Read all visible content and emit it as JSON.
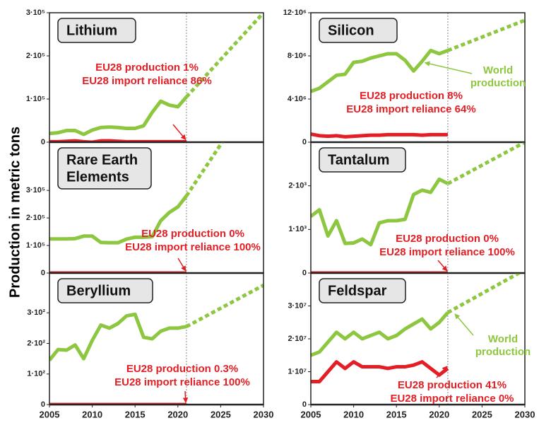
{
  "ylabel": "Production in metric tons",
  "chart_data": [
    {
      "type": "line",
      "title_lines": [
        "Lithium"
      ],
      "annotation": [
        "EU28 production 1%",
        "EU28 import reliance 86%"
      ],
      "x": [
        2005,
        2006,
        2007,
        2008,
        2009,
        2010,
        2011,
        2012,
        2013,
        2014,
        2015,
        2016,
        2017,
        2018,
        2019,
        2020,
        2021
      ],
      "series": [
        {
          "color": "#8dc63f",
          "values": [
            20000,
            22000,
            27000,
            27000,
            18000,
            28000,
            34000,
            35000,
            34000,
            32000,
            32000,
            38000,
            69000,
            95000,
            86000,
            82000,
            105000
          ]
        },
        {
          "color": "#8dc63f",
          "dashed": true,
          "x": [
            2021,
            2030
          ],
          "values": [
            105000,
            300000
          ]
        },
        {
          "color": "#e31e24",
          "values": [
            1000,
            1000,
            2000,
            3000,
            1000,
            0,
            3000,
            3000,
            2000,
            1000,
            1000,
            1000,
            1000,
            1000,
            1000,
            1000,
            1000
          ]
        }
      ],
      "vline": 2021,
      "ylim": [
        0,
        300000
      ],
      "yticks": [
        0,
        {
          "value": 100000,
          "label": "1·10⁵"
        },
        {
          "value": 200000,
          "label": "2·10⁵"
        },
        {
          "value": 300000,
          "label": "3·10⁵"
        }
      ]
    },
    {
      "type": "line",
      "title_lines": [
        "Silicon"
      ],
      "annotation": [
        "EU28 production 8%",
        "EU28 import reliance 64%"
      ],
      "series_label": [
        "World",
        "production"
      ],
      "x": [
        2005,
        2006,
        2007,
        2008,
        2009,
        2010,
        2011,
        2012,
        2013,
        2014,
        2015,
        2016,
        2017,
        2018,
        2019,
        2020,
        2021
      ],
      "series": [
        {
          "color": "#8dc63f",
          "values": [
            4700000,
            5000000,
            5600000,
            6200000,
            6300000,
            7400000,
            7500000,
            7800000,
            8000000,
            8200000,
            8200000,
            7600000,
            6600000,
            7500000,
            8500000,
            8200000,
            8500000
          ]
        },
        {
          "color": "#8dc63f",
          "dashed": true,
          "x": [
            2021,
            2030
          ],
          "values": [
            8500000,
            11300000
          ]
        },
        {
          "color": "#e31e24",
          "values": [
            750000,
            600000,
            550000,
            600000,
            500000,
            550000,
            600000,
            650000,
            650000,
            700000,
            700000,
            700000,
            700000,
            650000,
            700000,
            700000,
            700000
          ]
        }
      ],
      "vline": 2021,
      "ylim": [
        0,
        12000000
      ],
      "yticks": [
        0,
        {
          "value": 4000000,
          "label": "4·10⁶"
        },
        {
          "value": 8000000,
          "label": "8·10⁶"
        },
        {
          "value": 12000000,
          "label": "12·10⁶"
        }
      ]
    },
    {
      "type": "line",
      "title_lines": [
        "Rare Earth",
        "Elements"
      ],
      "annotation": [
        "EU28 production 0%",
        "EU28 import reliance 100%"
      ],
      "x": [
        2005,
        2006,
        2007,
        2008,
        2009,
        2010,
        2011,
        2012,
        2013,
        2014,
        2015,
        2016,
        2017,
        2018,
        2019,
        2020,
        2021
      ],
      "series": [
        {
          "color": "#8dc63f",
          "values": [
            124000,
            124000,
            124000,
            125000,
            134000,
            134000,
            111000,
            110000,
            110000,
            123000,
            130000,
            130000,
            132000,
            190000,
            220000,
            240000,
            280000
          ]
        },
        {
          "color": "#8dc63f",
          "dashed": true,
          "x": [
            2021,
            2030
          ],
          "values": [
            280000,
            700000
          ]
        },
        {
          "color": "#e31e24",
          "values": [
            0,
            0,
            0,
            0,
            0,
            0,
            0,
            0,
            0,
            0,
            0,
            0,
            0,
            0,
            0,
            0,
            0
          ]
        }
      ],
      "vline": 2021,
      "ylim": [
        0,
        475000
      ],
      "yticks": [
        0,
        {
          "value": 100000,
          "label": "1·10⁵"
        },
        {
          "value": 200000,
          "label": "2·10⁵"
        },
        {
          "value": 300000,
          "label": "3·10⁵"
        }
      ]
    },
    {
      "type": "line",
      "title_lines": [
        "Tantalum"
      ],
      "annotation": [
        "EU28 production 0%",
        "EU28 import reliance 100%"
      ],
      "x": [
        2005,
        2006,
        2007,
        2008,
        2009,
        2010,
        2011,
        2012,
        2013,
        2014,
        2015,
        2016,
        2017,
        2018,
        2019,
        2020,
        2021
      ],
      "series": [
        {
          "color": "#8dc63f",
          "values": [
            1300,
            1450,
            850,
            1200,
            680,
            690,
            780,
            650,
            1150,
            1200,
            1200,
            1230,
            1800,
            1900,
            1850,
            2150,
            2050
          ]
        },
        {
          "color": "#8dc63f",
          "dashed": true,
          "x": [
            2021,
            2030
          ],
          "values": [
            2050,
            3000
          ]
        },
        {
          "color": "#e31e24",
          "values": [
            0,
            0,
            0,
            0,
            0,
            0,
            0,
            0,
            0,
            0,
            0,
            0,
            0,
            0,
            0,
            0,
            0
          ]
        }
      ],
      "vline": 2021,
      "ylim": [
        0,
        3000
      ],
      "yticks": [
        0,
        {
          "value": 1000,
          "label": "1·10³"
        },
        {
          "value": 2000,
          "label": "2·10³"
        }
      ]
    },
    {
      "type": "line",
      "title_lines": [
        "Beryllium"
      ],
      "annotation": [
        "EU28 production 0.3%",
        "EU28 import reliance 100%"
      ],
      "x": [
        2005,
        2006,
        2007,
        2008,
        2009,
        2010,
        2011,
        2012,
        2013,
        2014,
        2015,
        2016,
        2017,
        2018,
        2019,
        2020,
        2021
      ],
      "series": [
        {
          "color": "#8dc63f",
          "values": [
            145,
            180,
            178,
            195,
            150,
            210,
            260,
            250,
            265,
            290,
            295,
            220,
            215,
            240,
            250,
            250,
            255
          ]
        },
        {
          "color": "#8dc63f",
          "dashed": true,
          "x": [
            2021,
            2030
          ],
          "values": [
            255,
            390
          ]
        },
        {
          "color": "#e31e24",
          "values": [
            0,
            0,
            0,
            0,
            0,
            0,
            0,
            0,
            0,
            0,
            0,
            0,
            0,
            0,
            0,
            0,
            0
          ]
        }
      ],
      "vline": 2021,
      "ylim": [
        0,
        430
      ],
      "yticks": [
        0,
        {
          "value": 100,
          "label": "1·10²"
        },
        {
          "value": 200,
          "label": "2·10²"
        },
        {
          "value": 300,
          "label": "3·10²"
        }
      ],
      "xlim": [
        2005,
        2030
      ],
      "xticks": [
        2005,
        2010,
        2015,
        2020,
        2025,
        2030
      ]
    },
    {
      "type": "line",
      "title_lines": [
        "Feldspar"
      ],
      "annotation": [
        "EU28 production 41%",
        "EU28 import reliance 0%"
      ],
      "series_label": [
        "World",
        "production"
      ],
      "x": [
        2005,
        2006,
        2007,
        2008,
        2009,
        2010,
        2011,
        2012,
        2013,
        2014,
        2015,
        2016,
        2017,
        2018,
        2019,
        2020,
        2021
      ],
      "series": [
        {
          "color": "#8dc63f",
          "values": [
            15000000,
            16000000,
            19000000,
            22000000,
            20000000,
            22000000,
            20000000,
            21000000,
            22000000,
            20000000,
            21000000,
            23000000,
            24500000,
            26000000,
            23000000,
            25000000,
            28000000
          ]
        },
        {
          "color": "#8dc63f",
          "dashed": true,
          "x": [
            2021,
            2030
          ],
          "values": [
            28000000,
            41000000
          ]
        },
        {
          "color": "#e31e24",
          "values": [
            7000000,
            7000000,
            10000000,
            13000000,
            11000000,
            13000000,
            11500000,
            11500000,
            11500000,
            11000000,
            11500000,
            11500000,
            12000000,
            13000000,
            11000000,
            9000000,
            11000000
          ]
        }
      ],
      "vline": 2021,
      "ylim": [
        0,
        40000000
      ],
      "yticks": [
        0,
        {
          "value": 10000000,
          "label": "1·10⁷"
        },
        {
          "value": 20000000,
          "label": "2·10⁷"
        },
        {
          "value": 30000000,
          "label": "3·10⁷"
        }
      ],
      "xlim": [
        2005,
        2030
      ],
      "xticks": [
        2005,
        2010,
        2015,
        2020,
        2025,
        2030
      ]
    }
  ]
}
